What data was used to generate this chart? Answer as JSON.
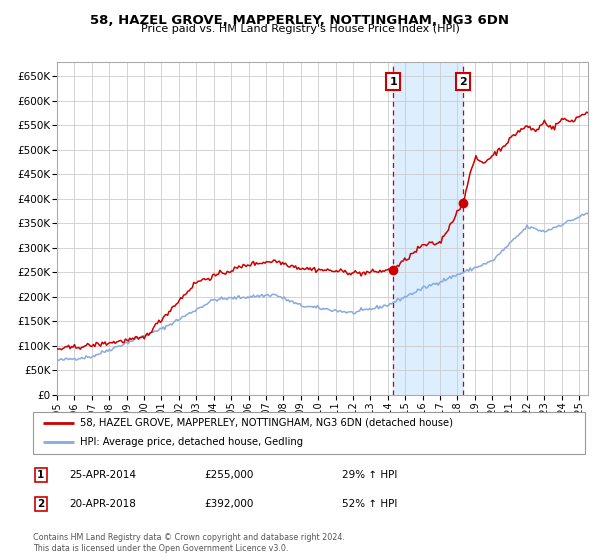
{
  "title_line1": "58, HAZEL GROVE, MAPPERLEY, NOTTINGHAM, NG3 6DN",
  "title_line2": "Price paid vs. HM Land Registry's House Price Index (HPI)",
  "legend_line1": "58, HAZEL GROVE, MAPPERLEY, NOTTINGHAM, NG3 6DN (detached house)",
  "legend_line2": "HPI: Average price, detached house, Gedling",
  "annotation1_label": "1",
  "annotation1_date": "25-APR-2014",
  "annotation1_price": "£255,000",
  "annotation1_hpi": "29% ↑ HPI",
  "annotation2_label": "2",
  "annotation2_date": "20-APR-2018",
  "annotation2_price": "£392,000",
  "annotation2_hpi": "52% ↑ HPI",
  "footnote": "Contains HM Land Registry data © Crown copyright and database right 2024.\nThis data is licensed under the Open Government Licence v3.0.",
  "property_color": "#cc0000",
  "hpi_color": "#88aadd",
  "shade_color": "#ddeeff",
  "grid_color": "#cccccc",
  "background_color": "#ffffff",
  "annotation_box_color": "#cc0000",
  "purchase1_year": 2014.32,
  "purchase1_value": 255000,
  "purchase2_year": 2018.3,
  "purchase2_value": 392000,
  "ylim_max": 680000,
  "xlim_start": 1995,
  "xlim_end": 2025.5
}
